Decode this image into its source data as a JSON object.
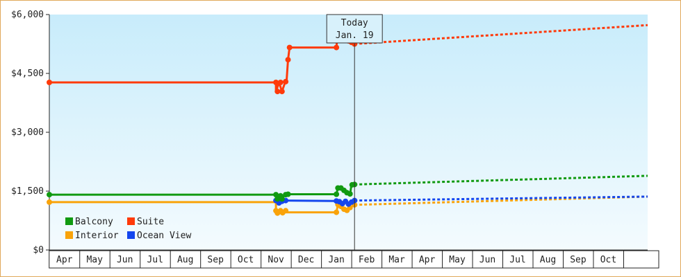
{
  "chart_data": {
    "type": "line",
    "title": "",
    "xlabel": "",
    "ylabel": "",
    "ylim": [
      0,
      6000
    ],
    "y_ticks": [
      "$0",
      "$1,500",
      "$3,000",
      "$4,500",
      "$6,000"
    ],
    "y_tick_values": [
      0,
      1500,
      3000,
      4500,
      6000
    ],
    "x_ticks": [
      "Apr",
      "May",
      "Jun",
      "Jul",
      "Aug",
      "Sep",
      "Oct",
      "Nov",
      "Dec",
      "Jan",
      "Feb",
      "Mar",
      "Apr",
      "May",
      "Jun",
      "Jul",
      "Aug",
      "Sep",
      "Oct"
    ],
    "x_tick_months": [
      0,
      1,
      2,
      3,
      4,
      5,
      6,
      7,
      8,
      9,
      10,
      11,
      12,
      13,
      14,
      15,
      16,
      17,
      18
    ],
    "x_range_months": [
      -0.5,
      19.3
    ],
    "today_marker": {
      "line1": "Today",
      "line2": "Jan. 19",
      "month": 9.6
    },
    "legend": {
      "placement": "bottom-left",
      "entries": [
        "Balcony",
        "Suite",
        "Interior",
        "Ocean View"
      ]
    },
    "series": [
      {
        "name": "Suite",
        "color": "#ff3a0a",
        "history": [
          [
            -0.5,
            4270
          ],
          [
            7.0,
            4270
          ],
          [
            7.0,
            4040
          ],
          [
            7.1,
            4270
          ],
          [
            7.2,
            4040
          ],
          [
            7.3,
            4270
          ],
          [
            7.35,
            4310
          ],
          [
            7.4,
            4850
          ],
          [
            7.45,
            5160
          ],
          [
            9.0,
            5160
          ],
          [
            9.0,
            5170
          ],
          [
            9.05,
            5560
          ],
          [
            9.15,
            5560
          ],
          [
            9.2,
            5420
          ],
          [
            9.3,
            5380
          ],
          [
            9.4,
            5330
          ],
          [
            9.5,
            5290
          ],
          [
            9.6,
            5250
          ]
        ],
        "markers": [
          [
            -0.5,
            4270
          ],
          [
            7.0,
            4270
          ],
          [
            7.05,
            4040
          ],
          [
            7.15,
            4270
          ],
          [
            7.2,
            4040
          ],
          [
            7.32,
            4290
          ],
          [
            7.4,
            4850
          ],
          [
            7.45,
            5160
          ],
          [
            9.0,
            5160
          ],
          [
            9.05,
            5560
          ],
          [
            9.15,
            5560
          ],
          [
            9.22,
            5420
          ],
          [
            9.3,
            5380
          ],
          [
            9.4,
            5330
          ],
          [
            9.5,
            5290
          ],
          [
            9.6,
            5250
          ]
        ],
        "forecast": [
          [
            9.6,
            5250
          ],
          [
            19.3,
            5730
          ]
        ]
      },
      {
        "name": "Balcony",
        "color": "#119a11",
        "history": [
          [
            -0.5,
            1410
          ],
          [
            7.0,
            1410
          ],
          [
            7.0,
            1280
          ],
          [
            7.1,
            1380
          ],
          [
            7.2,
            1300
          ],
          [
            7.3,
            1410
          ],
          [
            7.4,
            1420
          ],
          [
            9.0,
            1420
          ],
          [
            9.0,
            1430
          ],
          [
            9.05,
            1580
          ],
          [
            9.15,
            1580
          ],
          [
            9.25,
            1520
          ],
          [
            9.35,
            1460
          ],
          [
            9.45,
            1420
          ],
          [
            9.5,
            1660
          ],
          [
            9.6,
            1670
          ]
        ],
        "markers": [
          [
            -0.5,
            1410
          ],
          [
            7.0,
            1410
          ],
          [
            7.05,
            1300
          ],
          [
            7.15,
            1380
          ],
          [
            7.2,
            1300
          ],
          [
            7.32,
            1410
          ],
          [
            7.4,
            1420
          ],
          [
            9.0,
            1420
          ],
          [
            9.05,
            1580
          ],
          [
            9.15,
            1580
          ],
          [
            9.25,
            1520
          ],
          [
            9.35,
            1460
          ],
          [
            9.45,
            1430
          ],
          [
            9.52,
            1660
          ],
          [
            9.6,
            1670
          ]
        ],
        "forecast": [
          [
            9.6,
            1670
          ],
          [
            19.3,
            1890
          ]
        ]
      },
      {
        "name": "Ocean View",
        "color": "#1446ee",
        "history": [
          [
            7.0,
            1260
          ],
          [
            7.1,
            1200
          ],
          [
            7.2,
            1240
          ],
          [
            7.3,
            1260
          ],
          [
            9.0,
            1250
          ],
          [
            9.1,
            1230
          ],
          [
            9.2,
            1180
          ],
          [
            9.3,
            1240
          ],
          [
            9.4,
            1170
          ],
          [
            9.5,
            1220
          ],
          [
            9.6,
            1260
          ]
        ],
        "markers": [
          [
            7.0,
            1260
          ],
          [
            7.1,
            1200
          ],
          [
            7.2,
            1240
          ],
          [
            7.32,
            1260
          ],
          [
            9.0,
            1250
          ],
          [
            9.1,
            1230
          ],
          [
            9.2,
            1180
          ],
          [
            9.3,
            1240
          ],
          [
            9.4,
            1170
          ],
          [
            9.5,
            1220
          ],
          [
            9.6,
            1260
          ]
        ],
        "forecast": [
          [
            9.6,
            1260
          ],
          [
            19.3,
            1360
          ]
        ]
      },
      {
        "name": "Interior",
        "color": "#f9a30a",
        "history": [
          [
            -0.5,
            1220
          ],
          [
            7.0,
            1220
          ],
          [
            7.0,
            940
          ],
          [
            7.1,
            1000
          ],
          [
            7.2,
            950
          ],
          [
            7.3,
            1000
          ],
          [
            7.35,
            960
          ],
          [
            9.0,
            960
          ],
          [
            9.05,
            1160
          ],
          [
            9.15,
            1110
          ],
          [
            9.25,
            1040
          ],
          [
            9.35,
            1010
          ],
          [
            9.45,
            1080
          ],
          [
            9.6,
            1150
          ]
        ],
        "markers": [
          [
            -0.5,
            1220
          ],
          [
            7.0,
            1000
          ],
          [
            7.05,
            940
          ],
          [
            7.15,
            1000
          ],
          [
            7.22,
            950
          ],
          [
            7.32,
            1000
          ],
          [
            9.0,
            960
          ],
          [
            9.05,
            1160
          ],
          [
            9.15,
            1110
          ],
          [
            9.25,
            1040
          ],
          [
            9.35,
            1010
          ],
          [
            9.45,
            1080
          ],
          [
            9.6,
            1150
          ]
        ],
        "forecast": [
          [
            9.6,
            1150
          ],
          [
            19.3,
            1360
          ]
        ]
      }
    ]
  }
}
